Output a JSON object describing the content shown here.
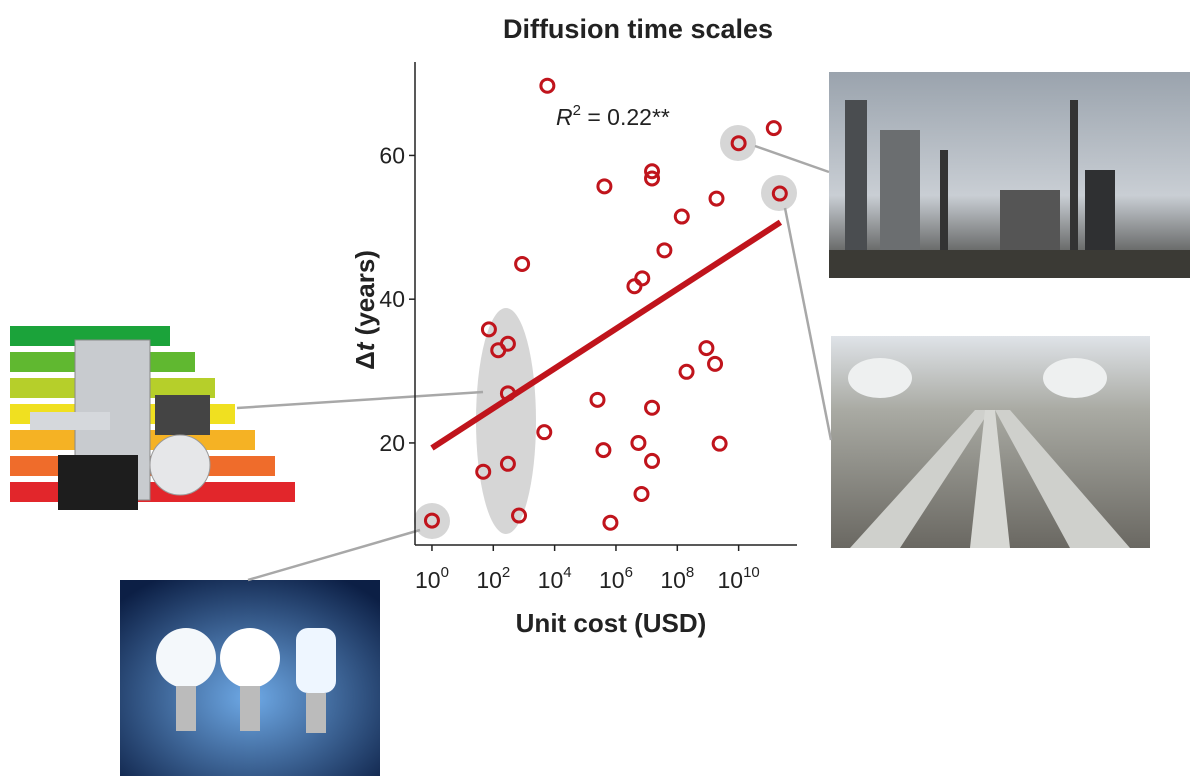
{
  "chart_data": {
    "type": "scatter",
    "title": "Diffusion time scales",
    "x_label": "Unit cost (USD)",
    "y_label": {
      "symbol": "Δ",
      "variable": "t",
      "text": " (years)"
    },
    "annotation": {
      "symbol": "R",
      "exponent": "2",
      "text": " = 0.22**"
    },
    "log_x": true,
    "color": "#c0141c",
    "xlim": [
      0.28,
      800000000000.0
    ],
    "ylim": [
      5.8,
      73
    ],
    "xticks": [
      {
        "value": 1,
        "label": "10",
        "exponent": "0"
      },
      {
        "value": 100,
        "label": "10",
        "exponent": "2"
      },
      {
        "value": 10000,
        "label": "10",
        "exponent": "4"
      },
      {
        "value": 1000000,
        "label": "10",
        "exponent": "6"
      },
      {
        "value": 100000000,
        "label": "10",
        "exponent": "8"
      },
      {
        "value": 10000000000,
        "label": "10",
        "exponent": "10"
      }
    ],
    "yticks": [
      20,
      40,
      60
    ],
    "x": [
      5800,
      140000000000.0,
      10000000000.0,
      220000000000.0,
      420000,
      15000000.0,
      15000000.0,
      1900000000.0,
      140000000.0,
      38000000.0,
      870,
      7200000.0,
      4000000.0,
      72,
      300,
      145,
      890000000.0,
      1700000000.0,
      200000000.0,
      300,
      250000,
      15000000.0,
      4600,
      5400000.0,
      2400000000.0,
      390000,
      15000000.0,
      300,
      47,
      6800000.0,
      690,
      660000,
      1
    ],
    "values": [
      69.7,
      63.8,
      61.7,
      54.7,
      55.7,
      57.8,
      56.8,
      54.0,
      51.5,
      46.8,
      44.9,
      42.9,
      41.8,
      35.8,
      33.8,
      32.9,
      33.2,
      31.0,
      29.9,
      26.9,
      26.0,
      24.9,
      21.5,
      20.0,
      19.9,
      19.0,
      17.5,
      17.1,
      16.0,
      12.9,
      9.9,
      8.9,
      9.2
    ],
    "trend": {
      "color": "#c0141c",
      "x": [
        1,
        230000000000.0
      ],
      "y": [
        19.3,
        50.7
      ]
    }
  }
}
